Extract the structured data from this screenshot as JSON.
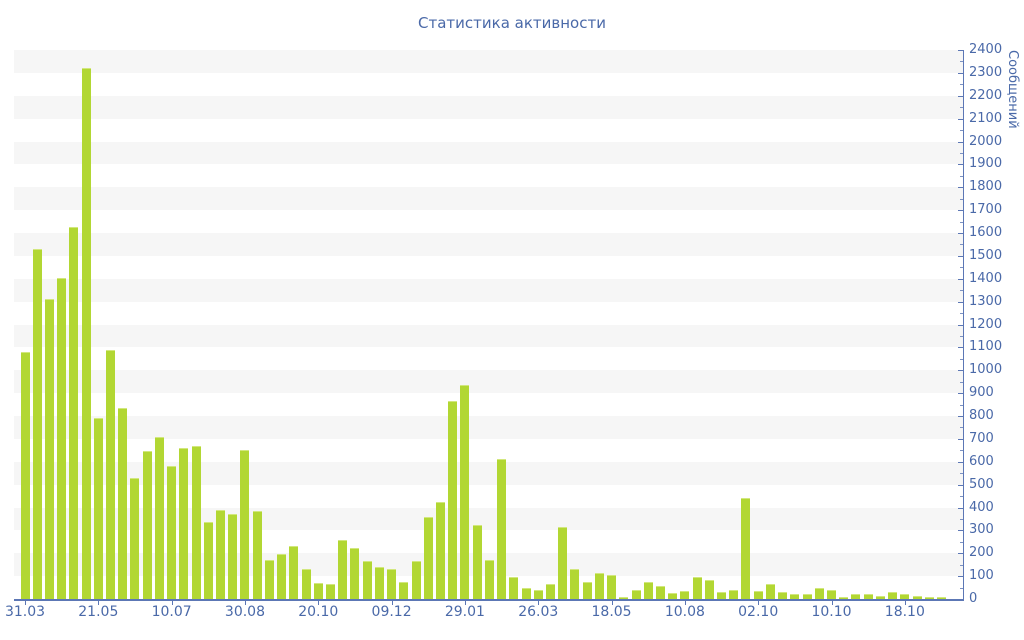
{
  "title": "Статистика активности",
  "chart_data": {
    "type": "bar",
    "title": "Статистика активности",
    "xlabel": "",
    "ylabel": "Сообщений",
    "ylim": [
      0,
      2400
    ],
    "y_tick_step": 100,
    "y_minor_tick_step": 50,
    "legend": null,
    "grid": "horizontal-stripes-every-100",
    "x_tick_every": 6,
    "x_tick_labels": [
      "31.03",
      "21.05",
      "10.07",
      "30.08",
      "20.10",
      "09.12",
      "29.01",
      "26.03",
      "18.05",
      "10.08",
      "02.10",
      "10.10",
      "18.10"
    ],
    "values": [
      1080,
      1530,
      1310,
      1405,
      1625,
      2320,
      790,
      1090,
      835,
      530,
      645,
      710,
      580,
      660,
      670,
      335,
      390,
      370,
      650,
      385,
      170,
      195,
      230,
      130,
      70,
      65,
      260,
      225,
      165,
      140,
      130,
      75,
      165,
      360,
      425,
      865,
      935,
      325,
      170,
      610,
      95,
      50,
      40,
      65,
      315,
      130,
      75,
      115,
      105,
      10,
      40,
      75,
      55,
      25,
      35,
      95,
      85,
      30,
      40,
      440,
      35,
      65,
      30,
      20,
      20,
      50,
      40,
      10,
      20,
      20,
      15,
      30,
      20,
      15,
      8,
      10
    ],
    "colors": {
      "bar": "#b2d733",
      "bar_edge": "#d2e77e",
      "axis": "#5c77b5",
      "label": "#4a69a8",
      "stripe": "#f6f6f6",
      "background": "#ffffff"
    }
  }
}
